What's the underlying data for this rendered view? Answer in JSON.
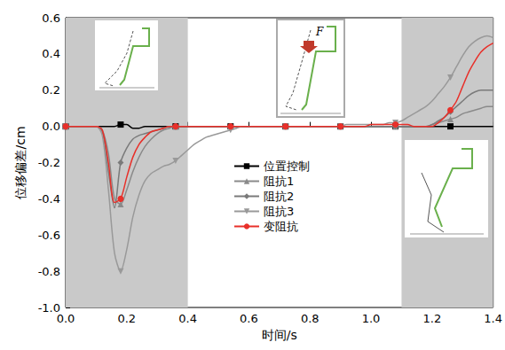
{
  "chart_data": {
    "type": "line",
    "x_label": "时间/s",
    "y_label": "位移偏差/cm",
    "x": [
      0,
      0.02,
      0.04,
      0.06,
      0.08,
      0.1,
      0.12,
      0.14,
      0.16,
      0.18,
      0.2,
      0.22,
      0.24,
      0.26,
      0.28,
      0.3,
      0.32,
      0.34,
      0.36,
      0.38,
      0.4,
      0.42,
      0.44,
      0.46,
      0.48,
      0.5,
      0.52,
      0.54,
      0.56,
      0.58,
      0.6,
      0.62,
      0.64,
      0.66,
      0.68,
      0.7,
      0.72,
      0.74,
      0.76,
      0.78,
      0.8,
      0.82,
      0.84,
      0.86,
      0.88,
      0.9,
      0.92,
      0.94,
      0.96,
      0.98,
      1,
      1.02,
      1.04,
      1.06,
      1.08,
      1.1,
      1.12,
      1.14,
      1.16,
      1.18,
      1.2,
      1.22,
      1.24,
      1.26,
      1.28,
      1.3,
      1.32,
      1.34,
      1.36,
      1.38,
      1.4
    ],
    "series": [
      {
        "name": "位置控制",
        "color": "#000000",
        "marker": "square",
        "values": [
          0,
          0,
          0,
          0,
          0,
          0,
          0,
          0,
          0,
          0.01,
          0.01,
          -0.01,
          -0.01,
          0,
          0,
          0,
          0,
          0,
          0,
          0,
          0,
          0,
          0,
          0,
          0,
          0,
          0,
          0,
          0,
          0,
          0,
          0,
          0,
          0,
          0,
          0,
          0,
          0,
          0,
          0,
          0,
          0,
          0,
          0,
          0,
          0,
          0,
          0,
          0,
          0,
          0,
          0,
          0,
          0,
          0,
          0,
          0,
          0,
          0,
          0,
          0,
          0,
          0,
          0,
          0,
          0,
          0,
          0,
          0,
          0,
          0
        ]
      },
      {
        "name": "阻抗1",
        "color": "#8a8a8a",
        "marker": "triangle",
        "values": [
          0,
          0,
          0,
          0,
          0,
          0,
          -0.02,
          -0.15,
          -0.4,
          -0.43,
          -0.35,
          -0.25,
          -0.17,
          -0.11,
          -0.07,
          -0.04,
          -0.02,
          -0.01,
          0,
          0,
          0,
          0,
          0,
          0,
          0,
          0,
          0,
          0,
          0,
          0,
          0,
          0,
          0,
          0,
          0,
          0,
          0,
          0,
          0,
          0,
          0,
          0,
          0,
          0,
          0,
          0,
          0,
          0,
          0,
          0,
          0,
          0,
          0,
          0,
          0,
          0,
          0,
          0,
          0,
          0,
          0.01,
          0.02,
          0.03,
          0.04,
          0.05,
          0.07,
          0.08,
          0.09,
          0.1,
          0.11,
          0.11
        ]
      },
      {
        "name": "阻抗2",
        "color": "#7a7a7a",
        "marker": "diamond",
        "values": [
          0,
          0,
          0,
          0,
          0,
          0,
          -0.03,
          -0.25,
          -0.45,
          -0.2,
          -0.12,
          -0.07,
          -0.05,
          -0.04,
          -0.03,
          -0.02,
          -0.01,
          0,
          0,
          0,
          0,
          0,
          0,
          0,
          0,
          0,
          0,
          0,
          0,
          0,
          0,
          0,
          0,
          0,
          0,
          0,
          0,
          0,
          0,
          0,
          0,
          0,
          0,
          0,
          0,
          0,
          0,
          0,
          0,
          0,
          0,
          0,
          0,
          0,
          0,
          0,
          0,
          0,
          0,
          0,
          0.01,
          0.03,
          0.05,
          0.08,
          0.11,
          0.14,
          0.17,
          0.19,
          0.2,
          0.2,
          0.2
        ]
      },
      {
        "name": "阻抗3",
        "color": "#999999",
        "marker": "triangle-down",
        "values": [
          0,
          0,
          0,
          0,
          0,
          0,
          -0.05,
          -0.35,
          -0.7,
          -0.8,
          -0.68,
          -0.5,
          -0.38,
          -0.3,
          -0.26,
          -0.24,
          -0.22,
          -0.21,
          -0.19,
          -0.16,
          -0.13,
          -0.1,
          -0.08,
          -0.06,
          -0.05,
          -0.04,
          -0.03,
          -0.02,
          -0.01,
          0,
          0,
          0,
          0,
          0,
          0,
          0,
          0,
          0,
          0,
          0,
          0,
          0,
          0,
          0,
          0,
          0,
          0.01,
          0.01,
          0.01,
          0.01,
          0.01,
          0.01,
          0.01,
          0.02,
          0.02,
          0.03,
          0.05,
          0.07,
          0.09,
          0.11,
          0.14,
          0.18,
          0.22,
          0.27,
          0.33,
          0.39,
          0.44,
          0.47,
          0.49,
          0.5,
          0.49
        ]
      },
      {
        "name": "变阻抗",
        "color": "#e8302a",
        "marker": "circle",
        "values": [
          0,
          0,
          0,
          0,
          0,
          0,
          -0.02,
          -0.2,
          -0.42,
          -0.4,
          -0.28,
          -0.17,
          -0.1,
          -0.06,
          -0.03,
          -0.02,
          -0.01,
          0,
          0,
          0,
          0,
          0,
          0,
          0,
          0,
          0,
          0,
          0,
          0,
          0,
          0,
          0,
          0,
          0,
          0,
          0,
          0,
          0,
          0,
          0,
          0,
          0,
          0,
          0,
          0,
          0,
          0,
          0,
          0,
          0,
          0.01,
          0.01,
          0.01,
          0.01,
          0.01,
          0.01,
          0.01,
          0,
          0,
          0,
          0,
          0.02,
          0.05,
          0.09,
          0.14,
          0.22,
          0.3,
          0.36,
          0.41,
          0.44,
          0.46
        ]
      }
    ],
    "shaded_x": [
      [
        0,
        0.4
      ],
      [
        1.1,
        1.4
      ]
    ],
    "annotations": [
      {
        "text": "F"
      }
    ],
    "xlim": [
      0,
      1.4
    ],
    "xticks": [
      {
        "value": 0,
        "label": "0.0"
      },
      0.2,
      0.4,
      0.6,
      0.8,
      {
        "value": 1,
        "label": "1.0"
      },
      1.2,
      1.4
    ],
    "ylim": [
      -1,
      0.6
    ],
    "yticks": [
      {
        "value": -1,
        "label": "-1.0"
      },
      -0.8,
      -0.6,
      -0.4,
      -0.2,
      {
        "value": 0,
        "label": "0.0"
      },
      0.2,
      0.4,
      0.6
    ],
    "legend": "center",
    "grid": false
  }
}
